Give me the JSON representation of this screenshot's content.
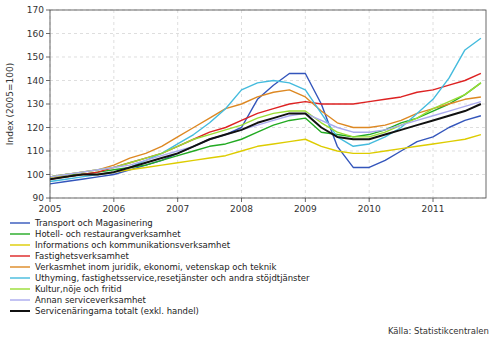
{
  "chart_data": {
    "type": "line",
    "y_label": "Index (2005=100)",
    "source": "Källa: Statistikcentralen",
    "xlim": [
      2005.0,
      2011.83
    ],
    "ylim": [
      90,
      170
    ],
    "xticks": [
      2005,
      2006,
      2007,
      2008,
      2009,
      2010,
      2011
    ],
    "yticks": [
      90,
      100,
      110,
      120,
      130,
      140,
      150,
      160,
      170
    ],
    "grid": true,
    "legend": "bottom",
    "x": [
      2005.0,
      2005.25,
      2005.5,
      2005.75,
      2006.0,
      2006.25,
      2006.5,
      2006.75,
      2007.0,
      2007.25,
      2007.5,
      2007.75,
      2008.0,
      2008.25,
      2008.5,
      2008.75,
      2009.0,
      2009.25,
      2009.5,
      2009.75,
      2010.0,
      2010.25,
      2010.5,
      2010.75,
      2011.0,
      2011.25,
      2011.5,
      2011.75
    ],
    "series": [
      {
        "name": "Transport och Magasinering",
        "color": "#3355bb",
        "values": [
          96,
          97,
          98,
          99,
          100,
          102,
          104,
          106,
          109,
          112,
          115,
          117,
          120,
          132,
          138,
          143,
          143,
          130,
          112,
          103,
          103,
          106,
          110,
          114,
          116,
          120,
          123,
          125
        ]
      },
      {
        "name": "Hotell- och restaurangverksamhet",
        "color": "#22aa22",
        "values": [
          99,
          100,
          100,
          101,
          102,
          103,
          104,
          106,
          108,
          110,
          112,
          113,
          115,
          118,
          121,
          123,
          124,
          118,
          117,
          116,
          117,
          119,
          122,
          124,
          127,
          130,
          134,
          139
        ]
      },
      {
        "name": "Informations och kommunikationsverksamhet",
        "color": "#ddcc00",
        "values": [
          99,
          99,
          100,
          100,
          101,
          102,
          103,
          104,
          105,
          106,
          107,
          108,
          110,
          112,
          113,
          114,
          115,
          112,
          110,
          109,
          109,
          110,
          111,
          112,
          113,
          114,
          115,
          117
        ]
      },
      {
        "name": "Fastighetsverksamhet",
        "color": "#dd2222",
        "values": [
          98,
          99,
          100,
          101,
          103,
          105,
          107,
          109,
          112,
          115,
          118,
          120,
          123,
          126,
          128,
          130,
          131,
          130,
          130,
          130,
          131,
          132,
          133,
          135,
          136,
          138,
          140,
          143
        ]
      },
      {
        "name": "Verkasmhet inom juridik, ekonomi, vetenskap och teknik",
        "color": "#dd8822",
        "values": [
          99,
          100,
          101,
          102,
          104,
          107,
          109,
          112,
          116,
          120,
          124,
          128,
          130,
          133,
          135,
          136,
          133,
          127,
          122,
          120,
          120,
          121,
          123,
          126,
          128,
          130,
          132,
          133
        ]
      },
      {
        "name": "Uthyming, fastighetsservice,resetjänster och andra stöjdtjänster",
        "color": "#44bbdd",
        "values": [
          97,
          98,
          99,
          100,
          101,
          103,
          106,
          109,
          113,
          117,
          122,
          128,
          136,
          139,
          140,
          139,
          136,
          126,
          116,
          112,
          113,
          116,
          120,
          126,
          132,
          141,
          153,
          158
        ]
      },
      {
        "name": "Kultur,nöje och fritid",
        "color": "#99dd33",
        "values": [
          99,
          100,
          101,
          102,
          103,
          105,
          107,
          109,
          112,
          115,
          117,
          119,
          121,
          124,
          126,
          127,
          127,
          122,
          118,
          116,
          116,
          118,
          121,
          124,
          128,
          131,
          134,
          139
        ]
      },
      {
        "name": "Annan serviceverksamhet",
        "color": "#aaaaee",
        "values": [
          99,
          100,
          101,
          102,
          103,
          104,
          106,
          108,
          110,
          112,
          115,
          117,
          119,
          121,
          123,
          125,
          126,
          123,
          120,
          118,
          118,
          119,
          121,
          123,
          125,
          127,
          129,
          131
        ]
      },
      {
        "name": "Servicenäringama totalt (exkl. handel)",
        "color": "#111111",
        "values": [
          98,
          99,
          100,
          100,
          101,
          103,
          105,
          107,
          109,
          112,
          115,
          117,
          119,
          122,
          124,
          126,
          126,
          120,
          116,
          115,
          115,
          117,
          119,
          121,
          123,
          125,
          127,
          130
        ]
      }
    ]
  }
}
